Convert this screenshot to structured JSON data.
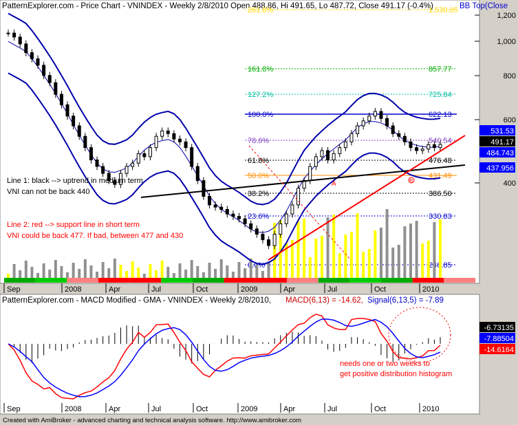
{
  "price_panel": {
    "title": "PatternExplorer.com - Price Chart - VNINDEX - Weekly 2/8/2010 Open 488.86, Hi 491.65, Lo 487.72, Close 491.17 (-0.4%)",
    "indicator_label": "BB Top(Close",
    "y_ticks": [
      "1,200",
      "1,000",
      "800",
      "600",
      "400"
    ],
    "fib_levels": [
      {
        "label": "261.8%",
        "value": "1,530.05",
        "color": "#ffd700"
      },
      {
        "label": "161.8%",
        "value": "857.77",
        "color": "#00aa00"
      },
      {
        "label": "127.2%",
        "value": "725.84",
        "color": "#00bfa0"
      },
      {
        "label": "100.0%",
        "value": "622.13",
        "color": "#0000cc"
      },
      {
        "label": "78.6%",
        "value": "540.54",
        "color": "#7f3fbf"
      },
      {
        "label": "61.8%",
        "value": "476.48",
        "color": "#000000"
      },
      {
        "label": "50.0%",
        "value": "431.49",
        "color": "#ff8c00"
      },
      {
        "label": "38.2%",
        "value": "386.50",
        "color": "#000000"
      },
      {
        "label": "23.6%",
        "value": "330.83",
        "color": "#0000cc"
      },
      {
        "label": "0.0%",
        "value": "240.85",
        "color": "#0000cc"
      }
    ],
    "right_boxes": [
      {
        "text": "531.53",
        "bg": "#0000ff",
        "fg": "#ffffff"
      },
      {
        "text": "491.17",
        "bg": "#000000",
        "fg": "#ffffff"
      },
      {
        "text": "484.743",
        "bg": "#0000ff",
        "fg": "#ffffff"
      },
      {
        "text": "437.956",
        "bg": "#0000ff",
        "fg": "#ffffff"
      }
    ],
    "notes": {
      "line1_a": "Line 1: black --> uptrend in medium term",
      "line1_b": "VNI can not be back 440",
      "line2_a": "Line 2: red --> support line in short term",
      "line2_b": "VNI could be back 477. If bad, between 477 and 430"
    },
    "markers": {
      "a": "A",
      "b": "B"
    }
  },
  "x_axis": {
    "labels": [
      "Sep",
      "2008",
      "Apr",
      "Jul",
      "Oct",
      "2009",
      "Apr",
      "Jul",
      "Oct",
      "2010"
    ]
  },
  "macd_panel": {
    "title_a": "PatternExplorer.com - MACD Modified  - GMA - VNINDEX - Weekly 2/8/2010,",
    "title_b": "MACD(6,13) = -14.62,",
    "title_c": "Signal(6,13,5) = -7.89",
    "right_boxes": [
      {
        "text": "-6.73135",
        "bg": "#000000",
        "fg": "#ffffff"
      },
      {
        "text": "-7.88504",
        "bg": "#0000ff",
        "fg": "#ffffff"
      },
      {
        "text": "-14.6164",
        "bg": "#ff0000",
        "fg": "#ffffff"
      }
    ],
    "note_a": "needs one or two weeks to",
    "note_b": "get positive distribution histogram"
  },
  "footer": "Created with AmiBroker - advanced charting and technical analysis software. http://www.amibroker.com",
  "chart_data": {
    "type": "line",
    "y_scale": "log",
    "ylim": [
      190,
      1300
    ],
    "series": [
      {
        "name": "VNINDEX",
        "values": [
          1080,
          1050,
          1000,
          940,
          900,
          860,
          800,
          760,
          700,
          650,
          600,
          560,
          520,
          480,
          440,
          420,
          400,
          380,
          370,
          400,
          420,
          430,
          460,
          450,
          480,
          520,
          540,
          530,
          510,
          500,
          480,
          420,
          380,
          340,
          320,
          315,
          310,
          300,
          295,
          290,
          280,
          270,
          260,
          250,
          240,
          260,
          280,
          300,
          320,
          360,
          380,
          420,
          450,
          470,
          440,
          460,
          480,
          500,
          530,
          560,
          580,
          600,
          620,
          590,
          560,
          530,
          520,
          500,
          480,
          470,
          475,
          490,
          480,
          491
        ]
      }
    ],
    "macd": {
      "macd_value": -14.62,
      "signal_value": -7.89,
      "histogram_value": -6.73135
    }
  },
  "colors": {
    "panel_bg": "#ffffff",
    "frame_bg": "#d4d0c8",
    "bb_band": "#0000aa",
    "support_line": "#ff0000",
    "trend_line": "#000000",
    "volume_up": "#ffff00",
    "volume_down": "#909090"
  }
}
